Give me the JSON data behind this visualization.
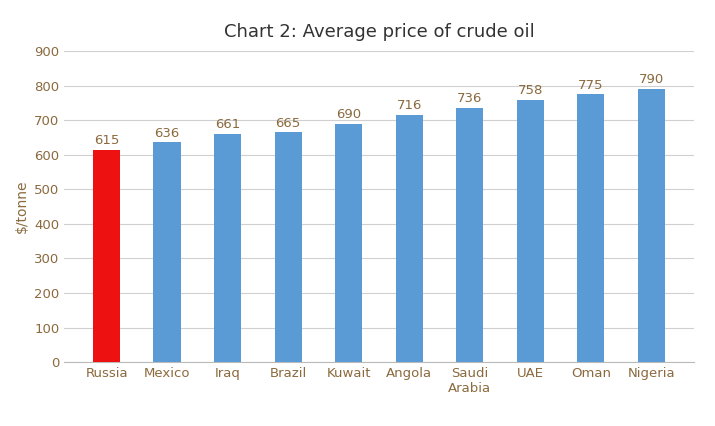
{
  "title": "Chart 2: Average price of crude oil",
  "ylabel": "$/tonne",
  "categories": [
    "Russia",
    "Mexico",
    "Iraq",
    "Brazil",
    "Kuwait",
    "Angola",
    "Saudi\nArabia",
    "UAE",
    "Oman",
    "Nigeria"
  ],
  "values": [
    615,
    636,
    661,
    665,
    690,
    716,
    736,
    758,
    775,
    790
  ],
  "bar_colors": [
    "#ee1111",
    "#5b9bd5",
    "#5b9bd5",
    "#5b9bd5",
    "#5b9bd5",
    "#5b9bd5",
    "#5b9bd5",
    "#5b9bd5",
    "#5b9bd5",
    "#5b9bd5"
  ],
  "ylim": [
    0,
    900
  ],
  "yticks": [
    0,
    100,
    200,
    300,
    400,
    500,
    600,
    700,
    800,
    900
  ],
  "background_color": "#ffffff",
  "grid_color": "#d0d0d0",
  "title_fontsize": 13,
  "label_fontsize": 10,
  "tick_fontsize": 9.5,
  "value_label_fontsize": 9.5,
  "value_label_color": "#8b6a3e",
  "tick_color": "#8b6a3e",
  "bar_width": 0.45
}
